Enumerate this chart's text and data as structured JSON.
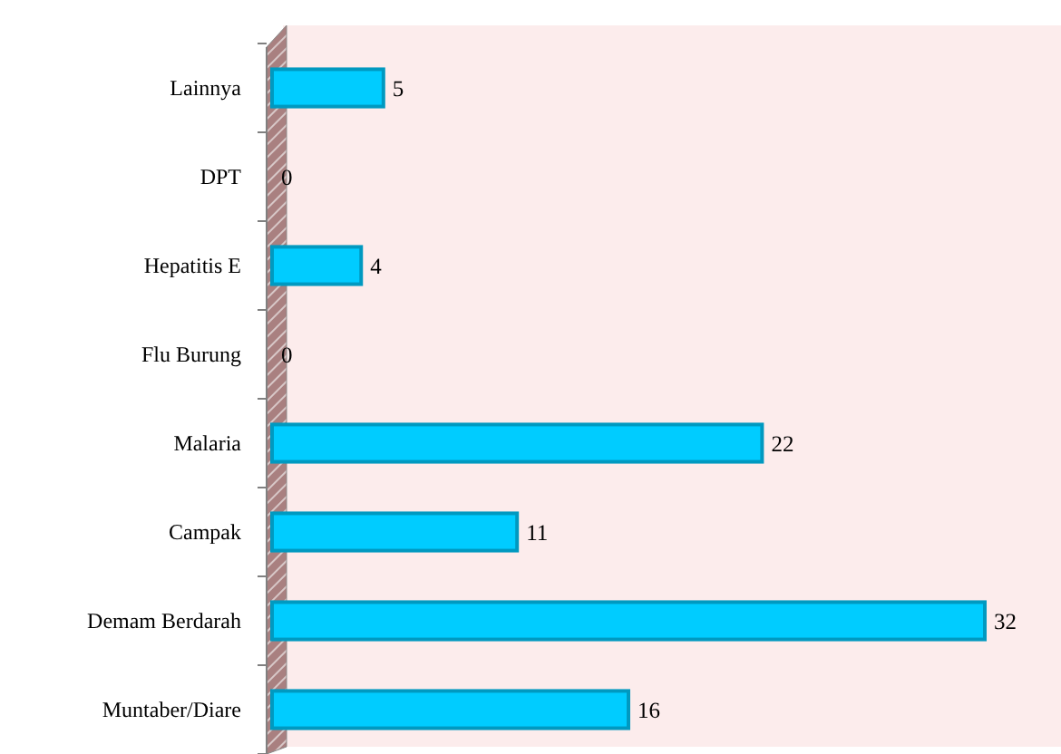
{
  "chart_data": {
    "type": "bar",
    "orientation": "horizontal",
    "categories": [
      "Lainnya",
      "DPT",
      "Hepatitis E",
      "Flu Burung",
      "Malaria",
      "Campak",
      "Demam Berdarah",
      "Muntaber/Diare"
    ],
    "values": [
      5,
      0,
      4,
      0,
      22,
      11,
      32,
      16
    ],
    "color": "#00ccff",
    "data_labels": true
  }
}
